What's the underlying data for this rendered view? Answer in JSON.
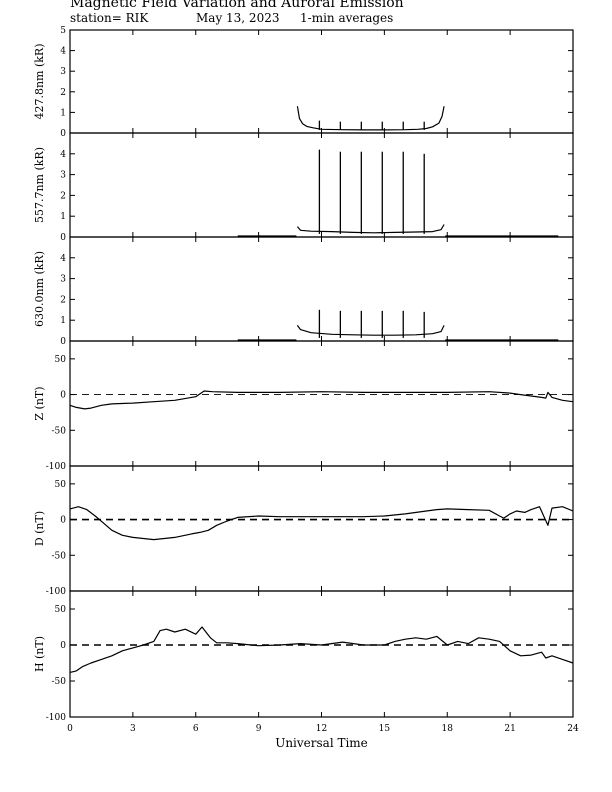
{
  "header": {
    "title": "Magnetic Field Variation and Auroral Emission",
    "station": "station= RIK",
    "date": "May 13, 2023",
    "averaging": "1-min averages"
  },
  "chart_data": [
    {
      "type": "line",
      "ylabel": "427.8nm (kR)",
      "ylim": [
        0,
        5
      ],
      "yticks": [
        "0",
        "1",
        "2",
        "3",
        "4",
        "5"
      ],
      "zero_line": false,
      "series": [
        {
          "x": [
            10.85,
            10.95,
            11.1,
            11.3,
            11.6,
            12.0,
            13.0,
            14.0,
            15.0,
            16.0,
            16.6,
            17.0,
            17.3,
            17.6,
            17.75,
            17.85
          ],
          "y": [
            1.3,
            0.7,
            0.45,
            0.32,
            0.25,
            0.18,
            0.16,
            0.15,
            0.15,
            0.16,
            0.18,
            0.22,
            0.3,
            0.48,
            0.8,
            1.3
          ]
        }
      ],
      "spikes": {
        "x": [
          11.9,
          12.9,
          13.9,
          14.9,
          15.9,
          16.9
        ],
        "y": [
          0.6,
          0.55,
          0.55,
          0.55,
          0.55,
          0.55
        ]
      }
    },
    {
      "type": "line",
      "ylabel": "557.7nm (kR)",
      "ylim": [
        0,
        5
      ],
      "yticks": [
        "0",
        "1",
        "2",
        "3",
        "4"
      ],
      "zero_line": false,
      "series": [
        {
          "x": [
            8.0,
            10.8
          ],
          "y": [
            0.05,
            0.05
          ]
        },
        {
          "x": [
            10.85,
            11.0,
            11.5,
            12.5,
            13.5,
            14.5,
            15.5,
            16.5,
            17.3,
            17.7,
            17.85
          ],
          "y": [
            0.5,
            0.32,
            0.28,
            0.26,
            0.22,
            0.2,
            0.22,
            0.24,
            0.26,
            0.35,
            0.6
          ]
        },
        {
          "x": [
            17.9,
            23.3
          ],
          "y": [
            0.05,
            0.05
          ]
        }
      ],
      "spikes": {
        "x": [
          11.9,
          12.9,
          13.9,
          14.9,
          15.9,
          16.9
        ],
        "y": [
          4.2,
          4.1,
          4.1,
          4.1,
          4.1,
          4.0
        ]
      }
    },
    {
      "type": "line",
      "ylabel": "630.0nm (kR)",
      "ylim": [
        0,
        5
      ],
      "yticks": [
        "0",
        "1",
        "2",
        "3",
        "4"
      ],
      "zero_line": false,
      "series": [
        {
          "x": [
            8.0,
            10.8
          ],
          "y": [
            0.05,
            0.05
          ]
        },
        {
          "x": [
            10.85,
            11.0,
            11.5,
            12.5,
            13.5,
            14.5,
            15.5,
            16.5,
            17.3,
            17.7,
            17.85
          ],
          "y": [
            0.75,
            0.55,
            0.4,
            0.32,
            0.3,
            0.28,
            0.28,
            0.3,
            0.35,
            0.45,
            0.75
          ]
        },
        {
          "x": [
            17.9,
            23.3
          ],
          "y": [
            0.05,
            0.05
          ]
        }
      ],
      "spikes": {
        "x": [
          11.9,
          12.9,
          13.9,
          14.9,
          15.9,
          16.9
        ],
        "y": [
          1.5,
          1.45,
          1.45,
          1.45,
          1.45,
          1.4
        ]
      }
    },
    {
      "type": "line",
      "ylabel": "Z (nT)",
      "ylim": [
        -100,
        75
      ],
      "yticks": [
        "-100",
        "-50",
        "0",
        "50"
      ],
      "zero_line": true,
      "zero_dash_width": 0.8,
      "series": [
        {
          "x": [
            0,
            0.3,
            0.7,
            1.0,
            1.5,
            2.0,
            3.0,
            4.0,
            5.0,
            6.0,
            6.4,
            6.8,
            8.0,
            10.0,
            12.0,
            14.0,
            16.0,
            18.0,
            20.0,
            21.0,
            21.5,
            22.0,
            22.5,
            22.7,
            22.8,
            23.0,
            23.5,
            24.0
          ],
          "y": [
            -15,
            -18,
            -20,
            -19,
            -15,
            -13,
            -12,
            -10,
            -8,
            -3,
            5,
            4,
            3,
            3,
            4,
            3,
            3,
            3,
            4,
            2,
            0,
            -2,
            -4,
            -5,
            3,
            -4,
            -8,
            -10
          ]
        }
      ]
    },
    {
      "type": "line",
      "ylabel": "D (nT)",
      "ylim": [
        -100,
        75
      ],
      "yticks": [
        "-100",
        "-50",
        "0",
        "50"
      ],
      "zero_line": true,
      "zero_dash_width": 1.6,
      "series": [
        {
          "x": [
            0,
            0.4,
            0.8,
            1.2,
            1.6,
            2.0,
            2.5,
            3.0,
            4.0,
            5.0,
            5.8,
            6.2,
            6.6,
            7.0,
            7.5,
            8.0,
            9.0,
            10.0,
            11.0,
            12.0,
            13.0,
            14.0,
            15.0,
            16.0,
            17.0,
            17.5,
            18.0,
            19.0,
            20.0,
            20.5,
            20.7,
            21.0,
            21.3,
            21.7,
            22.0,
            22.4,
            22.6,
            22.8,
            23.0,
            23.5,
            24.0
          ],
          "y": [
            15,
            18,
            14,
            5,
            -5,
            -15,
            -22,
            -25,
            -28,
            -25,
            -20,
            -18,
            -15,
            -8,
            -2,
            3,
            5,
            4,
            4,
            4,
            4,
            4,
            5,
            8,
            12,
            14,
            15,
            14,
            13,
            5,
            2,
            8,
            12,
            10,
            14,
            18,
            5,
            -8,
            16,
            18,
            12
          ]
        }
      ]
    },
    {
      "type": "line",
      "ylabel": "H (nT)",
      "ylim": [
        -100,
        75
      ],
      "yticks": [
        "-100",
        "-50",
        "0",
        "50"
      ],
      "zero_line": true,
      "zero_dash_width": 1.6,
      "series": [
        {
          "x": [
            0,
            0.3,
            0.6,
            1.0,
            1.5,
            2.0,
            2.5,
            3.0,
            3.5,
            4.0,
            4.3,
            4.6,
            5.0,
            5.5,
            6.0,
            6.3,
            6.7,
            7.0,
            7.5,
            8.0,
            9.0,
            10.0,
            11.0,
            12.0,
            13.0,
            14.0,
            15.0,
            15.5,
            16.0,
            16.5,
            17.0,
            17.5,
            18.0,
            18.5,
            19.0,
            19.5,
            20.0,
            20.5,
            21.0,
            21.5,
            22.0,
            22.5,
            22.7,
            23.0,
            23.5,
            24.0
          ],
          "y": [
            -38,
            -36,
            -30,
            -25,
            -20,
            -15,
            -8,
            -4,
            0,
            5,
            20,
            22,
            18,
            22,
            15,
            25,
            10,
            3,
            3,
            2,
            -1,
            0,
            2,
            0,
            4,
            0,
            0,
            5,
            8,
            10,
            8,
            12,
            0,
            5,
            2,
            10,
            8,
            5,
            -8,
            -15,
            -14,
            -10,
            -18,
            -15,
            -20,
            -25
          ]
        }
      ]
    }
  ],
  "x_axis": {
    "xlabel": "Universal Time",
    "xlim": [
      0,
      24
    ],
    "ticks": [
      0,
      3,
      6,
      9,
      12,
      15,
      18,
      21,
      24
    ],
    "tick_labels": [
      "0",
      "3",
      "6",
      "9",
      "12",
      "15",
      "18",
      "21",
      "24"
    ]
  }
}
